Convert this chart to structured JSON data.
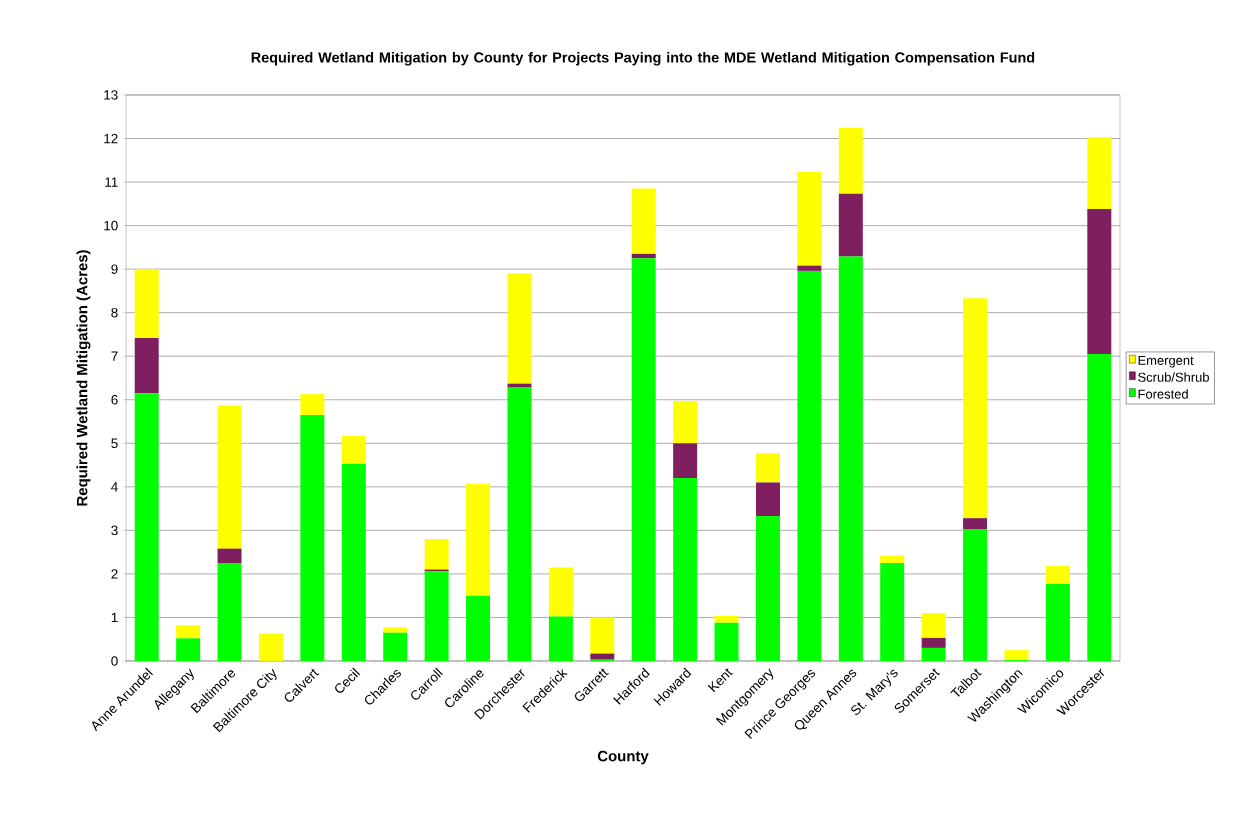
{
  "chart_data": {
    "type": "bar",
    "title": "Required Wetland Mitigation by County for Projects Paying into the MDE Wetland Mitigation Compensation Fund",
    "xlabel": "County",
    "ylabel": "Required Wetland Mitigation (Acres)",
    "categories": [
      "Anne Arundel",
      "Allegany",
      "Baltimore",
      "Baltimore City",
      "Calvert",
      "Cecil",
      "Charles",
      "Carroll",
      "Caroline",
      "Dorchester",
      "Frederick",
      "Garrett",
      "Harford",
      "Howard",
      "Kent",
      "Montgomery",
      "Prince Georges",
      "Queen Annes",
      "St. Mary's",
      "Somerset",
      "Talbot",
      "Washington",
      "Wicomico",
      "Worcester"
    ],
    "stacked": true,
    "series": [
      {
        "name": "Forested",
        "color": "#00ff00",
        "values": [
          6.15,
          0.52,
          2.25,
          0,
          5.65,
          4.53,
          0.65,
          2.06,
          1.5,
          6.28,
          1.02,
          0.03,
          9.25,
          4.2,
          0.88,
          3.33,
          8.96,
          9.29,
          2.25,
          0.3,
          3.03,
          0.02,
          1.77,
          7.05
        ]
      },
      {
        "name": "Scrub/Shrub",
        "color": "#7f1f5f",
        "values": [
          1.27,
          0,
          0.33,
          0,
          0,
          0,
          0,
          0.04,
          0,
          0.09,
          0,
          0.14,
          0.1,
          0.8,
          0,
          0.77,
          0.12,
          1.44,
          0,
          0.23,
          0.25,
          0,
          0,
          3.33
        ]
      },
      {
        "name": "Emergent",
        "color": "#ffff00",
        "values": [
          1.58,
          0.3,
          3.29,
          0.63,
          0.48,
          0.64,
          0.12,
          0.7,
          2.57,
          2.53,
          1.13,
          0.83,
          1.5,
          0.97,
          0.16,
          0.67,
          2.15,
          1.51,
          0.17,
          0.57,
          5.05,
          0.23,
          0.41,
          1.65
        ]
      }
    ],
    "ylim": [
      0,
      13
    ],
    "yticks": [
      0,
      1,
      2,
      3,
      4,
      5,
      6,
      7,
      8,
      9,
      10,
      11,
      12,
      13
    ],
    "grid": "y",
    "legend": "right"
  }
}
